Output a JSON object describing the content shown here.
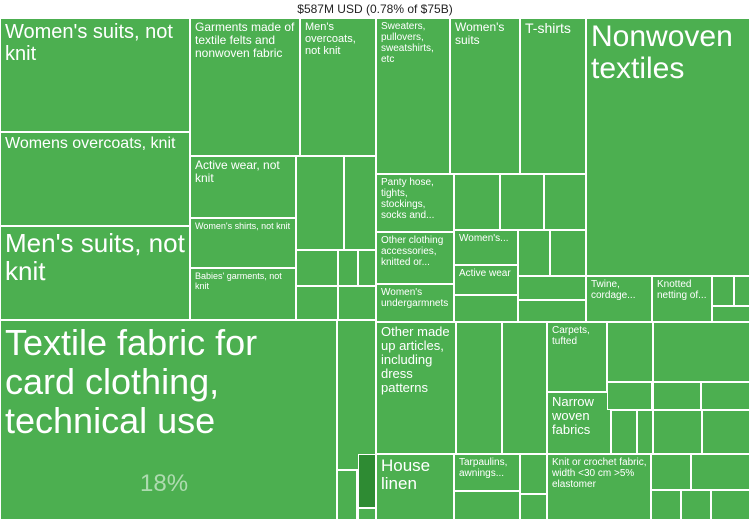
{
  "chart_data": {
    "type": "treemap",
    "title": "$587M USD (0.78% of $75B)",
    "highlight_share_label": "18%",
    "colors": {
      "tile": "#4caf50",
      "tile_dark": "#2e8b33",
      "border": "#ffffff"
    },
    "items": [
      {
        "label": "Textile fabric for card clothing, technical use",
        "share_pct": 18
      },
      {
        "label": "Women's suits, not knit"
      },
      {
        "label": "Womens overcoats, knit"
      },
      {
        "label": "Men's suits, not knit"
      },
      {
        "label": "Garments made of textile felts and nonwoven fabric"
      },
      {
        "label": "Men's overcoats, not knit"
      },
      {
        "label": "Active wear, not knit"
      },
      {
        "label": "Women's shirts, not knit"
      },
      {
        "label": "Babies' garments, not knit"
      },
      {
        "label": "Sweaters, pullovers, sweatshirts, etc"
      },
      {
        "label": "Women's suits"
      },
      {
        "label": "T-shirts"
      },
      {
        "label": "Nonwoven textiles"
      },
      {
        "label": "Panty hose, tights, stockings, socks and..."
      },
      {
        "label": "Other clothing accessories, knitted or..."
      },
      {
        "label": "Women's..."
      },
      {
        "label": "Active wear"
      },
      {
        "label": "Women's undergarmnets"
      },
      {
        "label": "Twine, cordage..."
      },
      {
        "label": "Knotted netting of..."
      },
      {
        "label": "Other made up articles, including dress patterns"
      },
      {
        "label": "Carpets, tufted"
      },
      {
        "label": "Narrow woven fabrics"
      },
      {
        "label": "House linen"
      },
      {
        "label": "Tarpaulins, awnings..."
      },
      {
        "label": "Knit or crochet fabric, width <30 cm >5% elastomer"
      }
    ]
  }
}
